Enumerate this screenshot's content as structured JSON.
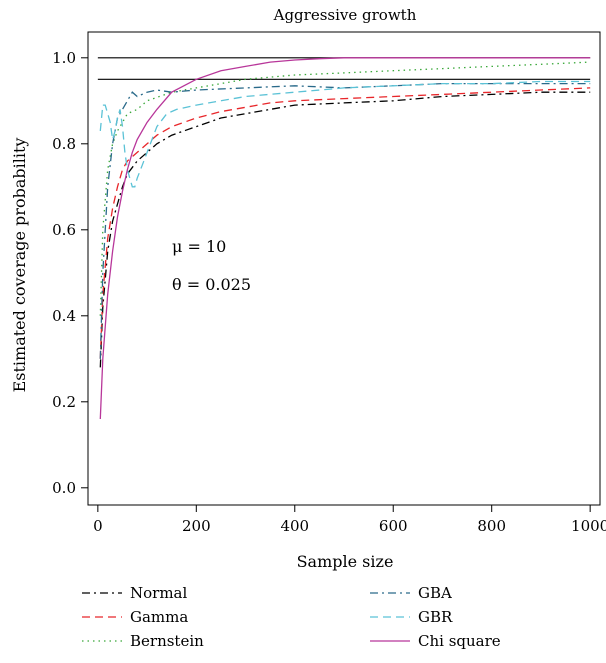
{
  "chart_data": {
    "type": "line",
    "title": "Aggressive growth",
    "xlabel": "Sample size",
    "ylabel": "Estimated coverage probability",
    "xlim": [
      0,
      1000
    ],
    "ylim": [
      0.0,
      1.0
    ],
    "x_ticks": [
      "0",
      "200",
      "400",
      "600",
      "800",
      "1000"
    ],
    "y_ticks": [
      "0.0",
      "0.2",
      "0.4",
      "0.6",
      "0.8",
      "1.0"
    ],
    "grid": false,
    "legend_position": "bottom",
    "annotations": [
      "μ = 10",
      "θ = 0.025"
    ],
    "reference_lines": [
      1.0,
      0.95
    ],
    "series": [
      {
        "name": "Normal",
        "color": "#000000",
        "dash": "dashdot",
        "points": [
          [
            5,
            0.28
          ],
          [
            10,
            0.42
          ],
          [
            20,
            0.55
          ],
          [
            30,
            0.62
          ],
          [
            40,
            0.66
          ],
          [
            50,
            0.7
          ],
          [
            60,
            0.73
          ],
          [
            80,
            0.76
          ],
          [
            100,
            0.78
          ],
          [
            120,
            0.8
          ],
          [
            150,
            0.82
          ],
          [
            200,
            0.84
          ],
          [
            250,
            0.86
          ],
          [
            300,
            0.87
          ],
          [
            350,
            0.88
          ],
          [
            400,
            0.89
          ],
          [
            500,
            0.895
          ],
          [
            600,
            0.9
          ],
          [
            700,
            0.91
          ],
          [
            800,
            0.915
          ],
          [
            900,
            0.92
          ],
          [
            1000,
            0.92
          ]
        ]
      },
      {
        "name": "Gamma",
        "color": "#e8262a",
        "dash": "dashed",
        "points": [
          [
            5,
            0.3
          ],
          [
            10,
            0.45
          ],
          [
            20,
            0.58
          ],
          [
            30,
            0.65
          ],
          [
            40,
            0.7
          ],
          [
            50,
            0.74
          ],
          [
            60,
            0.76
          ],
          [
            80,
            0.78
          ],
          [
            100,
            0.8
          ],
          [
            120,
            0.82
          ],
          [
            150,
            0.84
          ],
          [
            200,
            0.86
          ],
          [
            250,
            0.875
          ],
          [
            300,
            0.885
          ],
          [
            350,
            0.895
          ],
          [
            400,
            0.9
          ],
          [
            500,
            0.905
          ],
          [
            600,
            0.91
          ],
          [
            700,
            0.915
          ],
          [
            800,
            0.92
          ],
          [
            900,
            0.925
          ],
          [
            1000,
            0.93
          ]
        ]
      },
      {
        "name": "Bernstein",
        "color": "#3aa83a",
        "dash": "dotted",
        "points": [
          [
            5,
            0.4
          ],
          [
            10,
            0.6
          ],
          [
            20,
            0.74
          ],
          [
            30,
            0.8
          ],
          [
            40,
            0.83
          ],
          [
            50,
            0.85
          ],
          [
            60,
            0.87
          ],
          [
            80,
            0.88
          ],
          [
            100,
            0.9
          ],
          [
            150,
            0.92
          ],
          [
            200,
            0.93
          ],
          [
            300,
            0.95
          ],
          [
            400,
            0.96
          ],
          [
            500,
            0.965
          ],
          [
            600,
            0.97
          ],
          [
            700,
            0.975
          ],
          [
            800,
            0.98
          ],
          [
            900,
            0.985
          ],
          [
            1000,
            0.99
          ]
        ]
      },
      {
        "name": "GBA",
        "color": "#2a6a8a",
        "dash": "dashdot",
        "points": [
          [
            5,
            0.3
          ],
          [
            10,
            0.5
          ],
          [
            20,
            0.7
          ],
          [
            30,
            0.8
          ],
          [
            40,
            0.86
          ],
          [
            50,
            0.88
          ],
          [
            60,
            0.9
          ],
          [
            70,
            0.92
          ],
          [
            80,
            0.91
          ],
          [
            100,
            0.92
          ],
          [
            120,
            0.925
          ],
          [
            150,
            0.92
          ],
          [
            200,
            0.925
          ],
          [
            300,
            0.93
          ],
          [
            400,
            0.935
          ],
          [
            500,
            0.93
          ],
          [
            600,
            0.935
          ],
          [
            700,
            0.94
          ],
          [
            800,
            0.94
          ],
          [
            900,
            0.94
          ],
          [
            1000,
            0.94
          ]
        ]
      },
      {
        "name": "GBR",
        "color": "#5bc2d6",
        "dash": "dashed",
        "points": [
          [
            5,
            0.83
          ],
          [
            10,
            0.89
          ],
          [
            15,
            0.89
          ],
          [
            20,
            0.87
          ],
          [
            25,
            0.85
          ],
          [
            30,
            0.81
          ],
          [
            35,
            0.83
          ],
          [
            40,
            0.86
          ],
          [
            45,
            0.88
          ],
          [
            50,
            0.84
          ],
          [
            55,
            0.78
          ],
          [
            60,
            0.74
          ],
          [
            65,
            0.72
          ],
          [
            70,
            0.7
          ],
          [
            75,
            0.7
          ],
          [
            80,
            0.72
          ],
          [
            90,
            0.75
          ],
          [
            100,
            0.78
          ],
          [
            110,
            0.81
          ],
          [
            120,
            0.84
          ],
          [
            140,
            0.87
          ],
          [
            160,
            0.88
          ],
          [
            200,
            0.89
          ],
          [
            250,
            0.9
          ],
          [
            300,
            0.91
          ],
          [
            400,
            0.92
          ],
          [
            500,
            0.93
          ],
          [
            600,
            0.935
          ],
          [
            700,
            0.94
          ],
          [
            800,
            0.94
          ],
          [
            900,
            0.945
          ],
          [
            1000,
            0.945
          ]
        ]
      },
      {
        "name": "Chi square",
        "color": "#b8369a",
        "dash": "solid",
        "points": [
          [
            5,
            0.16
          ],
          [
            10,
            0.3
          ],
          [
            20,
            0.45
          ],
          [
            30,
            0.55
          ],
          [
            40,
            0.63
          ],
          [
            50,
            0.69
          ],
          [
            60,
            0.74
          ],
          [
            70,
            0.78
          ],
          [
            80,
            0.81
          ],
          [
            100,
            0.85
          ],
          [
            120,
            0.88
          ],
          [
            150,
            0.92
          ],
          [
            200,
            0.95
          ],
          [
            250,
            0.97
          ],
          [
            300,
            0.98
          ],
          [
            350,
            0.99
          ],
          [
            400,
            0.995
          ],
          [
            450,
            0.998
          ],
          [
            500,
            1.0
          ],
          [
            600,
            1.0
          ],
          [
            800,
            1.0
          ],
          [
            1000,
            1.0
          ]
        ]
      }
    ]
  }
}
